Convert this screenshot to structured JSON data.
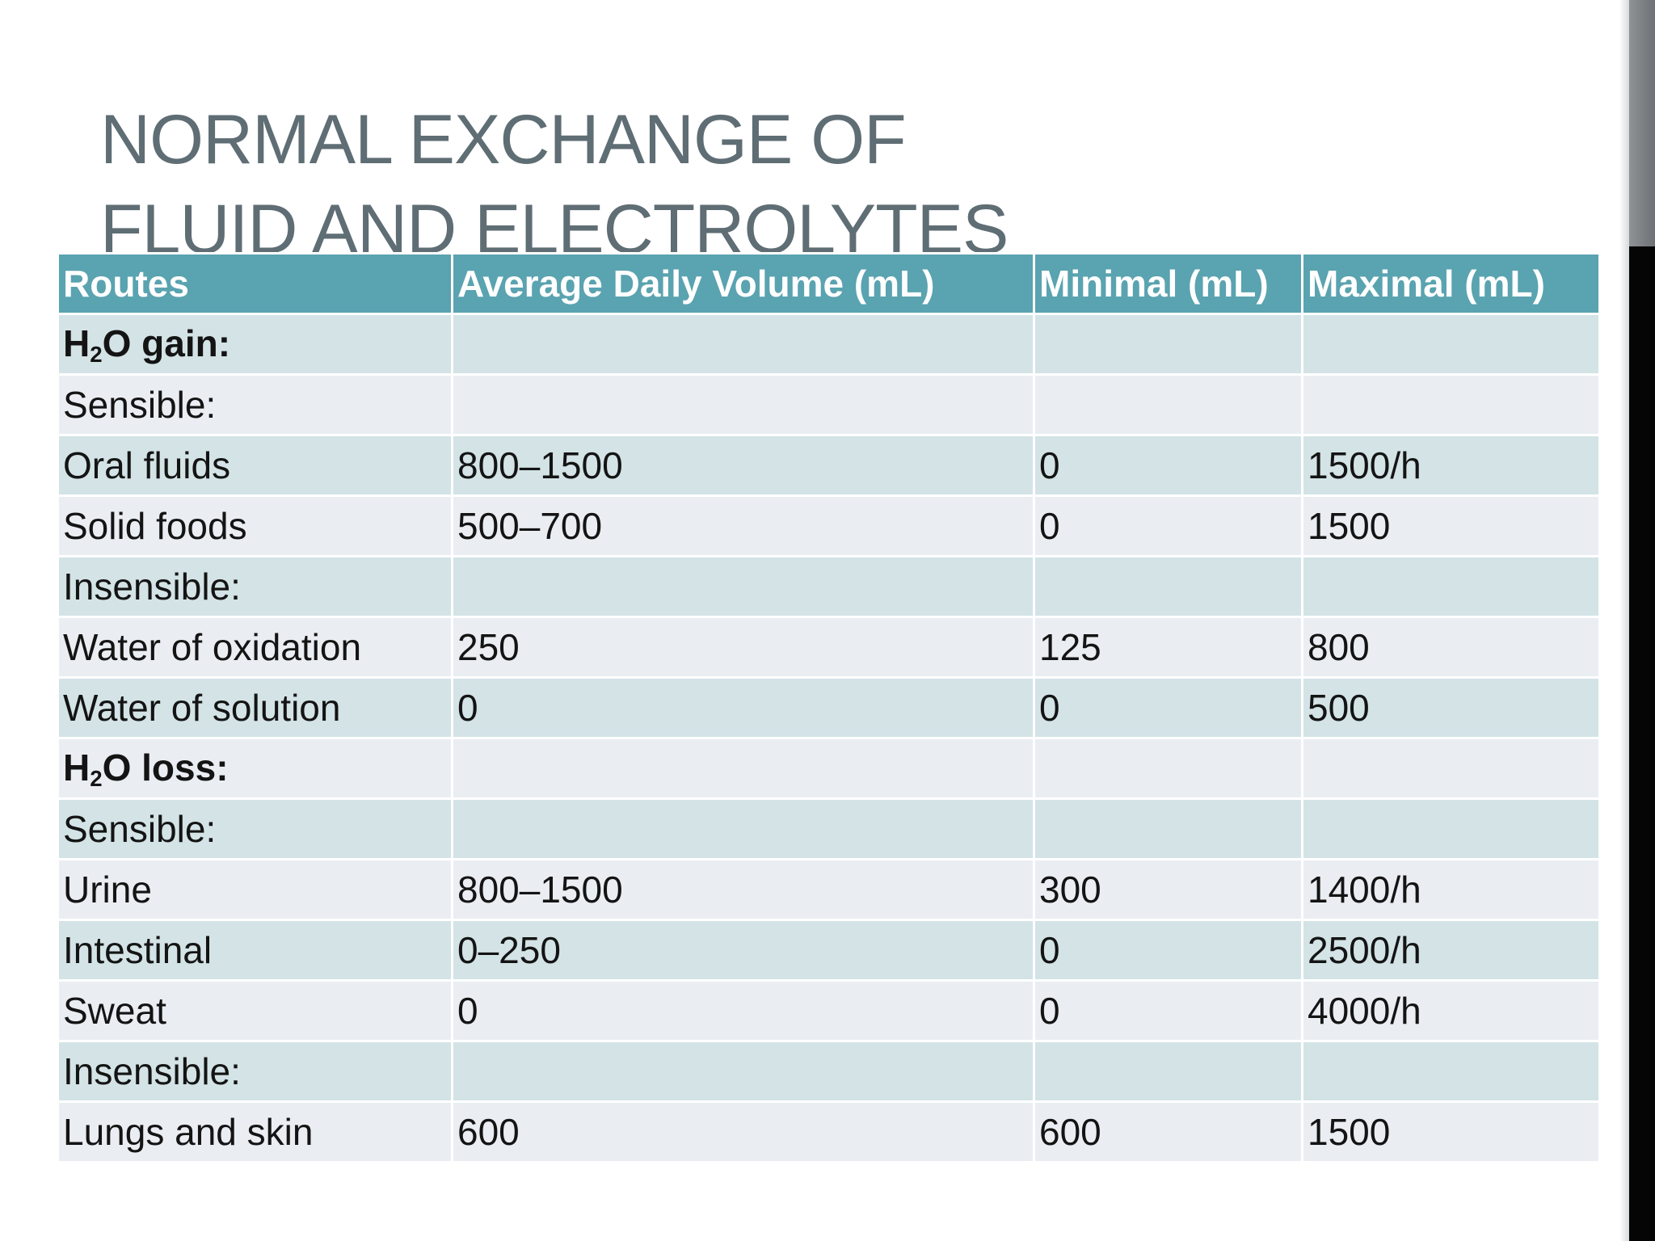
{
  "slide": {
    "title_line1": "NORMAL EXCHANGE OF",
    "title_line2": "FLUID AND ELECTROLYTES"
  },
  "table": {
    "headers": [
      "Routes",
      "Average Daily Volume (mL)",
      "Minimal (mL)",
      "Maximal (mL)"
    ],
    "gain_section": {
      "prefix": "H",
      "subscript": "2",
      "suffix": "O gain:"
    },
    "loss_section": {
      "prefix": "H",
      "subscript": "2",
      "suffix": "O loss:"
    },
    "rows": [
      {
        "route": "Sensible:",
        "average": "",
        "minimal": "",
        "maximal": ""
      },
      {
        "route": "Oral fluids",
        "average": "800–1500",
        "minimal": "0",
        "maximal": "1500/h"
      },
      {
        "route": "Solid foods",
        "average": "500–700",
        "minimal": "0",
        "maximal": "1500"
      },
      {
        "route": "Insensible:",
        "average": "",
        "minimal": "",
        "maximal": ""
      },
      {
        "route": "Water of oxidation",
        "average": "250",
        "minimal": "125",
        "maximal": "800"
      },
      {
        "route": "Water of solution",
        "average": "0",
        "minimal": "0",
        "maximal": "500"
      },
      {
        "route": "Sensible:",
        "average": "",
        "minimal": "",
        "maximal": ""
      },
      {
        "route": "Urine",
        "average": "800–1500",
        "minimal": "300",
        "maximal": "1400/h"
      },
      {
        "route": "Intestinal",
        "average": "0–250",
        "minimal": "0",
        "maximal": "2500/h"
      },
      {
        "route": "Sweat",
        "average": "0",
        "minimal": "0",
        "maximal": "4000/h"
      },
      {
        "route": "Insensible:",
        "average": "",
        "minimal": "",
        "maximal": ""
      },
      {
        "route": "Lungs and skin",
        "average": "600",
        "minimal": "600",
        "maximal": "1500"
      }
    ]
  }
}
